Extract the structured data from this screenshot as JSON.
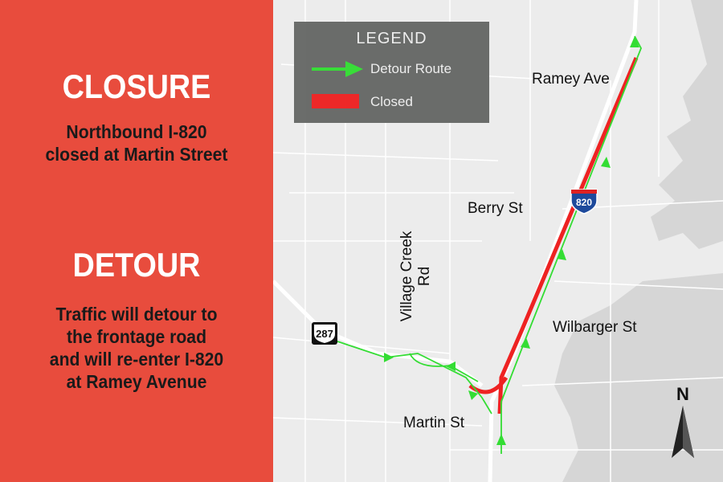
{
  "closure": {
    "title": "CLOSURE",
    "text": [
      "Northbound I-820",
      "closed at Martin Street"
    ]
  },
  "detour": {
    "title": "DETOUR",
    "text": [
      "Traffic will detour to",
      "the frontage road",
      "and will re-enter I-820",
      "at Ramey Avenue"
    ]
  },
  "legend": {
    "title": "LEGEND",
    "items": [
      {
        "label": "Detour Route",
        "icon": "green-arrow-icon",
        "color": "#33dd33"
      },
      {
        "label": "Closed",
        "icon": "red-bar-icon",
        "color": "#ee2222"
      }
    ]
  },
  "map": {
    "labels": {
      "ramey": "Ramey Ave",
      "berry": "Berry St",
      "wilbarger": "Wilbarger St",
      "martin": "Martin St",
      "village": "Village Creek Rd"
    },
    "shields": {
      "interstate": "820",
      "us": "287"
    },
    "north": "N"
  },
  "colors": {
    "panel": "#e84c3d",
    "closed": "#ee2222",
    "detour": "#33dd33"
  }
}
